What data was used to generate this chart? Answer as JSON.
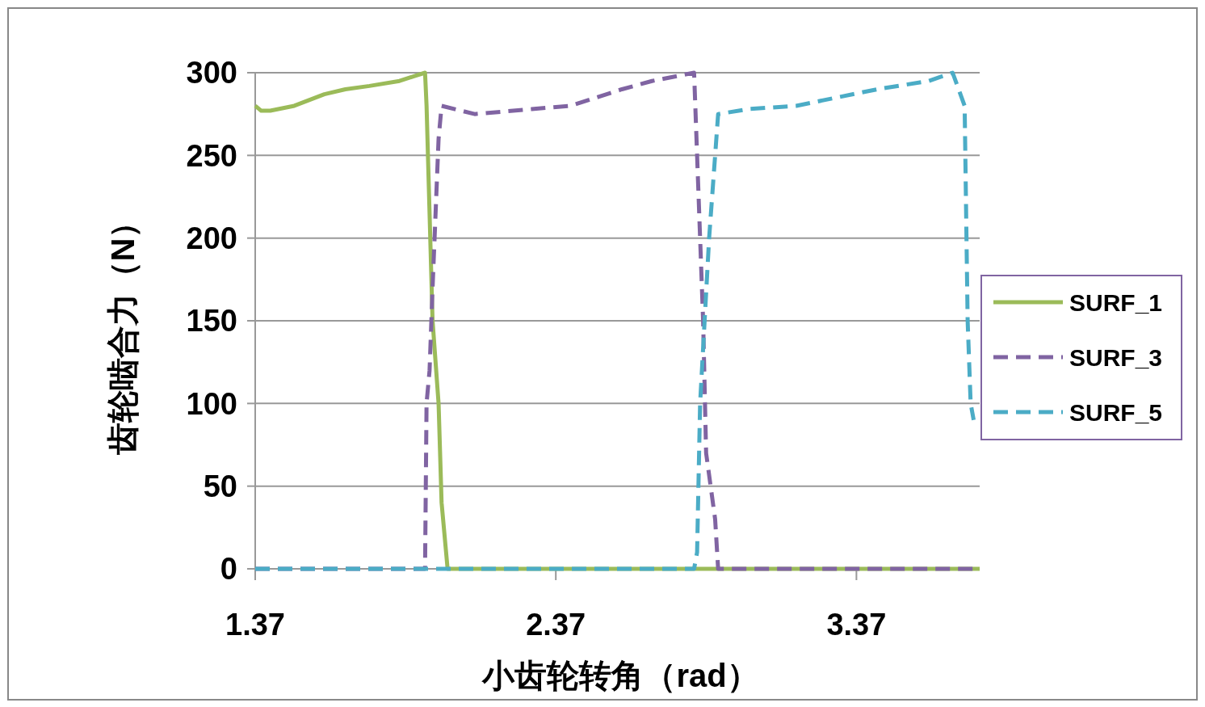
{
  "chart_data": {
    "type": "line",
    "xlabel": "小齿轮转角（rad）",
    "ylabel": "齿轮啮合力（N）",
    "xlim": [
      1.37,
      3.78
    ],
    "xticks": [
      1.37,
      2.37,
      3.37
    ],
    "ylim": [
      0,
      300
    ],
    "yticks": [
      0,
      50,
      100,
      150,
      200,
      250,
      300
    ],
    "grid": "y",
    "legend": "right",
    "series": [
      {
        "name": "SURF_1",
        "color": "#9bbb59",
        "line_style": "solid",
        "x": [
          1.37,
          1.39,
          1.42,
          1.5,
          1.6,
          1.67,
          1.75,
          1.85,
          1.9,
          1.935,
          1.94,
          1.96,
          1.98,
          1.99,
          2.01,
          3.78
        ],
        "values": [
          280,
          277,
          277,
          280,
          287,
          290,
          292,
          295,
          298,
          300,
          280,
          150,
          100,
          40,
          0,
          0
        ]
      },
      {
        "name": "SURF_3",
        "color": "#8064a2",
        "line_style": "dashed",
        "x": [
          1.37,
          1.935,
          1.94,
          1.95,
          1.96,
          1.98,
          1.99,
          2.1,
          2.29,
          2.42,
          2.59,
          2.69,
          2.83,
          2.85,
          2.86,
          2.87,
          2.9,
          2.91,
          3.78
        ],
        "values": [
          0,
          0,
          100,
          120,
          170,
          260,
          280,
          275,
          278,
          280,
          290,
          295,
          300,
          200,
          150,
          70,
          30,
          0,
          0
        ]
      },
      {
        "name": "SURF_5",
        "color": "#4bacc6",
        "line_style": "dashed",
        "x": [
          1.37,
          2.83,
          2.84,
          2.85,
          2.88,
          2.91,
          3.01,
          3.17,
          3.44,
          3.61,
          3.69,
          3.73,
          3.74,
          3.75,
          3.76
        ],
        "values": [
          0,
          0,
          10,
          100,
          200,
          275,
          278,
          280,
          290,
          295,
          300,
          280,
          150,
          100,
          90
        ]
      }
    ]
  }
}
